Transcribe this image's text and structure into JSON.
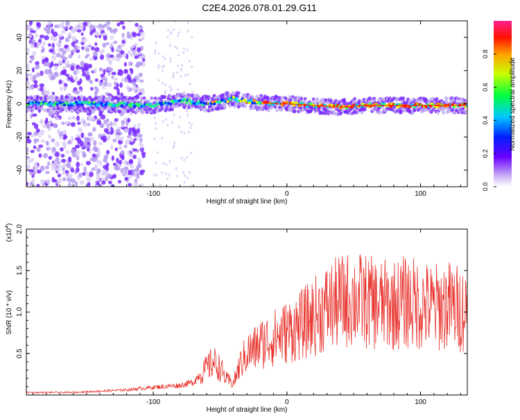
{
  "title": "C2E4.2026.078.01.29.G11",
  "colors": {
    "snr_line": "#e8322c",
    "spectrogram_core": "#ff2a00",
    "spectrogram_halo": "#7a2cff",
    "spectrogram_faint": "#d9c8f5"
  },
  "chart_data": [
    {
      "type": "heatmap",
      "xlabel": "Height of straight line (km)",
      "ylabel": "Frequency (Hz)",
      "xlim": [
        -195,
        135
      ],
      "ylim": [
        -50,
        50
      ],
      "xticks": [
        -100,
        0,
        100
      ],
      "xtick_labels": [
        "-100",
        "0",
        "100"
      ],
      "yticks": [
        -40,
        -20,
        0,
        20,
        40
      ],
      "ytick_labels": [
        "-40",
        "-20",
        "0",
        "20",
        "40"
      ],
      "ridge": {
        "description_points_x": [
          -195,
          -150,
          -100,
          -80,
          -60,
          -40,
          -20,
          0,
          20,
          40,
          60,
          80,
          100,
          120,
          135
        ],
        "description_points_y": [
          0,
          0,
          -1,
          2,
          0,
          3,
          0.5,
          0,
          -1,
          -2,
          -1,
          -1,
          -1,
          -1,
          -1
        ]
      },
      "colorbar": {
        "label": "Normalized spectral amplitude",
        "range": [
          0,
          1
        ],
        "ticks": [
          0.0,
          0.2,
          0.4,
          0.6,
          0.8
        ],
        "tick_labels": [
          "0.0",
          "0.2",
          "0.4",
          "0.6",
          "0.8"
        ]
      },
      "grid": false
    },
    {
      "type": "line",
      "xlabel": "Height of straight line (km)",
      "ylabel": "SNR (10 * v/v)",
      "y_multiplier_label": "(x10",
      "y_multiplier_exp": "4",
      "y_multiplier_close": ")",
      "xlim": [
        -195,
        135
      ],
      "ylim": [
        0,
        2.0
      ],
      "xticks": [
        -100,
        0,
        100
      ],
      "xtick_labels": [
        "-100",
        "0",
        "100"
      ],
      "yticks": [
        0.5,
        1.0,
        1.5,
        2.0
      ],
      "ytick_labels": [
        "0.5",
        "1.0",
        "1.5",
        "2.0"
      ],
      "series": [
        {
          "envelope_x": [
            -195,
            -160,
            -140,
            -120,
            -100,
            -80,
            -70,
            -60,
            -55,
            -50,
            -45,
            -40,
            -35,
            -30,
            -25,
            -20,
            -10,
            0,
            10,
            20,
            30,
            40,
            50,
            60,
            70,
            80,
            90,
            100,
            110,
            120,
            135
          ],
          "envelope_y": [
            0.04,
            0.04,
            0.06,
            0.08,
            0.12,
            0.15,
            0.2,
            0.45,
            0.55,
            0.45,
            0.25,
            0.2,
            0.5,
            0.7,
            0.75,
            0.85,
            0.95,
            1.05,
            1.15,
            1.3,
            1.45,
            1.55,
            1.6,
            1.55,
            1.5,
            1.5,
            1.55,
            1.5,
            1.45,
            1.5,
            1.4
          ],
          "noise": 0.35
        }
      ],
      "grid": false
    }
  ]
}
